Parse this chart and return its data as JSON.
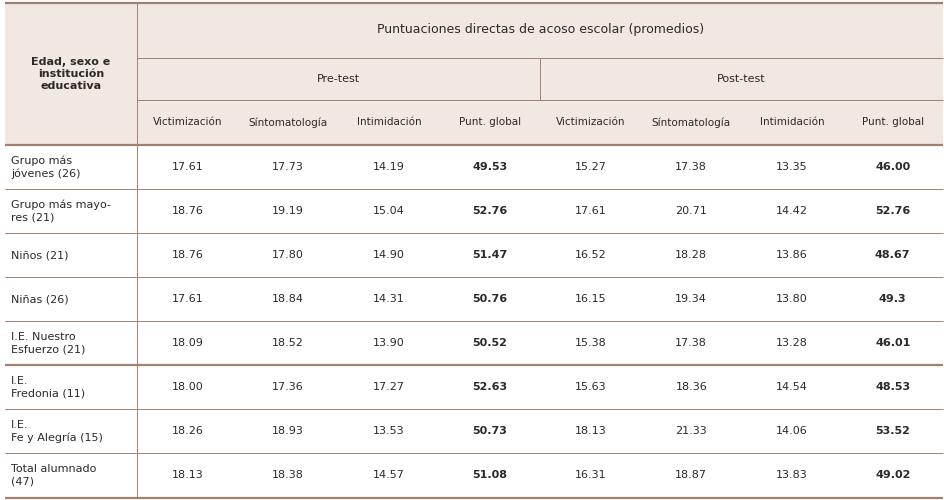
{
  "title": "Puntuaciones directas de acoso escolar (promedios)",
  "col_header_left": "Edad, sexo e\ninstitución\neducativa",
  "subheader_pretest": "Pre-test",
  "subheader_posttest": "Post-test",
  "col_headers": [
    "Victimización",
    "Síntomatología",
    "Intimidación",
    "Punt. global",
    "Victimización",
    "Síntomatología",
    "Intimidación",
    "Punt. global"
  ],
  "row_labels": [
    "Grupo más\njóvenes (26)",
    "Grupo más mayo-\nres (21)",
    "Niños (21)",
    "Niñas (26)",
    "I.E. Nuestro\nEsfuerzo (21)",
    "I.E.\nFredonia (11)",
    "I.E.\nFe y Alegría (15)",
    "Total alumnado\n(47)"
  ],
  "data": [
    [
      17.61,
      17.73,
      14.19,
      49.53,
      15.27,
      17.38,
      13.35,
      46.0
    ],
    [
      18.76,
      19.19,
      15.04,
      52.76,
      17.61,
      20.71,
      14.42,
      52.76
    ],
    [
      18.76,
      17.8,
      14.9,
      51.47,
      16.52,
      18.28,
      13.86,
      48.67
    ],
    [
      17.61,
      18.84,
      14.31,
      50.76,
      16.15,
      19.34,
      13.8,
      49.3
    ],
    [
      18.09,
      18.52,
      13.9,
      50.52,
      15.38,
      17.38,
      13.28,
      46.01
    ],
    [
      18.0,
      17.36,
      17.27,
      52.63,
      15.63,
      18.36,
      14.54,
      48.53
    ],
    [
      18.26,
      18.93,
      13.53,
      50.73,
      18.13,
      21.33,
      14.06,
      53.52
    ],
    [
      18.13,
      18.38,
      14.57,
      51.08,
      16.31,
      18.87,
      13.83,
      49.02
    ]
  ],
  "data_str": [
    [
      "17.61",
      "17.73",
      "14.19",
      "49.53",
      "15.27",
      "17.38",
      "13.35",
      "46.00"
    ],
    [
      "18.76",
      "19.19",
      "15.04",
      "52.76",
      "17.61",
      "20.71",
      "14.42",
      "52.76"
    ],
    [
      "18.76",
      "17.80",
      "14.90",
      "51.47",
      "16.52",
      "18.28",
      "13.86",
      "48.67"
    ],
    [
      "17.61",
      "18.84",
      "14.31",
      "50.76",
      "16.15",
      "19.34",
      "13.80",
      "49.3"
    ],
    [
      "18.09",
      "18.52",
      "13.90",
      "50.52",
      "15.38",
      "17.38",
      "13.28",
      "46.01"
    ],
    [
      "18.00",
      "17.36",
      "17.27",
      "52.63",
      "15.63",
      "18.36",
      "14.54",
      "48.53"
    ],
    [
      "18.26",
      "18.93",
      "13.53",
      "50.73",
      "18.13",
      "21.33",
      "14.06",
      "53.52"
    ],
    [
      "18.13",
      "18.38",
      "14.57",
      "51.08",
      "16.31",
      "18.87",
      "13.83",
      "49.02"
    ]
  ],
  "bold_cols": [
    3,
    7
  ],
  "separator_after_row": 5,
  "background_header": "#f2e8e2",
  "background_white": "#ffffff",
  "line_color": "#a08070",
  "text_color": "#2a2a2a",
  "font_size_title": 9.0,
  "font_size_header": 8.0,
  "font_size_data": 8.0,
  "font_size_label": 8.0
}
